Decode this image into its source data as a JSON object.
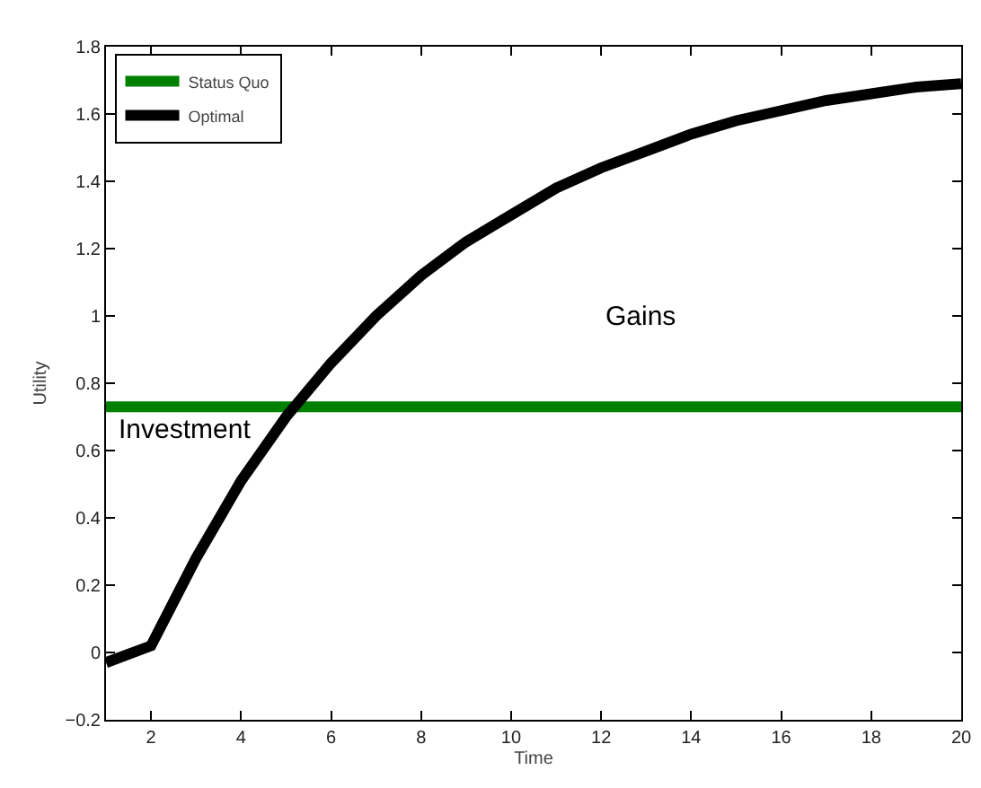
{
  "chart_data": {
    "type": "line",
    "xlabel": "Time",
    "ylabel": "Utility",
    "x": [
      1,
      2,
      3,
      4,
      5,
      6,
      7,
      8,
      9,
      10,
      11,
      12,
      13,
      14,
      15,
      16,
      17,
      18,
      19,
      20
    ],
    "series": [
      {
        "name": "Status Quo",
        "color": "#008000",
        "values": [
          0.73,
          0.73,
          0.73,
          0.73,
          0.73,
          0.73,
          0.73,
          0.73,
          0.73,
          0.73,
          0.73,
          0.73,
          0.73,
          0.73,
          0.73,
          0.73,
          0.73,
          0.73,
          0.73,
          0.73
        ]
      },
      {
        "name": "Optimal",
        "color": "#000000",
        "values": [
          -0.03,
          0.02,
          0.28,
          0.51,
          0.7,
          0.86,
          1.0,
          1.12,
          1.22,
          1.3,
          1.38,
          1.44,
          1.49,
          1.54,
          1.58,
          1.61,
          1.64,
          1.66,
          1.68,
          1.69
        ]
      }
    ],
    "xlim": [
      1,
      20
    ],
    "xticks": [
      2,
      4,
      6,
      8,
      10,
      12,
      14,
      16,
      18,
      20
    ],
    "ylim": [
      -0.2,
      1.8
    ],
    "yticks": [
      -0.2,
      0,
      0.2,
      0.4,
      0.6,
      0.8,
      1,
      1.2,
      1.4,
      1.6,
      1.8
    ],
    "annotations": [
      "Investment",
      "Gains"
    ],
    "grid": false,
    "legend": "top left",
    "marker": "none",
    "line_style": "solid"
  }
}
